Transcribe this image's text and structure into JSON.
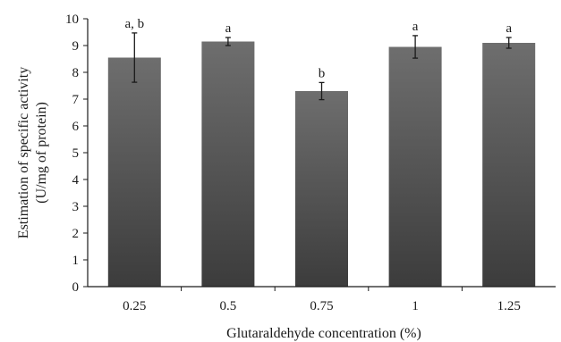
{
  "chart_data": {
    "type": "bar",
    "title": "",
    "xlabel": "Glutaraldehyde concentration (%)",
    "ylabel_lines": [
      "Estimation of specific activity",
      "(U/mg of protein)"
    ],
    "categories": [
      "0.25",
      "0.5",
      "0.75",
      "1",
      "1.25"
    ],
    "values": [
      8.55,
      9.15,
      7.3,
      8.95,
      9.1
    ],
    "errors": [
      0.92,
      0.15,
      0.32,
      0.42,
      0.2
    ],
    "significance_labels": [
      "a, b",
      "a",
      "b",
      "a",
      "a"
    ],
    "ylim": [
      0,
      10
    ],
    "yticks": [
      0,
      1,
      2,
      3,
      4,
      5,
      6,
      7,
      8,
      9,
      10
    ],
    "grid": false,
    "legend": "none",
    "colors": {
      "bar_top": "#6e6e6e",
      "bar_bottom": "#3c3c3c",
      "axis": "#1a1a1a",
      "error_bar": "#1a1a1a"
    }
  }
}
